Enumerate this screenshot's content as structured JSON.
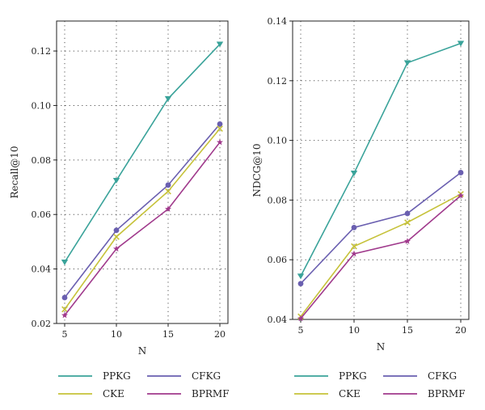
{
  "colors": {
    "PPKG": "#3aa39a",
    "CFKG": "#6a5fb0",
    "CKE": "#c6c23a",
    "BPRMF": "#a03a8c"
  },
  "legend": {
    "entries": [
      "PPKG",
      "CFKG",
      "CKE",
      "BPRMF"
    ]
  },
  "chart_data": [
    {
      "type": "line",
      "xlabel": "N",
      "ylabel": "Recall@10",
      "x": [
        5,
        10,
        15,
        20
      ],
      "xticks": [
        "5",
        "10",
        "15",
        "20"
      ],
      "yticks": [
        "0.02",
        "0.04",
        "0.06",
        "0.08",
        "0.10",
        "0.12"
      ],
      "ylim": [
        0.02,
        0.131
      ],
      "grid": true,
      "series": [
        {
          "name": "PPKG",
          "marker": "triangle-down",
          "values": [
            0.0425,
            0.0725,
            0.1025,
            0.1225
          ]
        },
        {
          "name": "CFKG",
          "marker": "circle",
          "values": [
            0.0295,
            0.0542,
            0.0708,
            0.0932
          ]
        },
        {
          "name": "CKE",
          "marker": "x",
          "values": [
            0.0252,
            0.0518,
            0.0685,
            0.0915
          ]
        },
        {
          "name": "BPRMF",
          "marker": "star",
          "values": [
            0.023,
            0.0474,
            0.062,
            0.0865
          ]
        }
      ]
    },
    {
      "type": "line",
      "xlabel": "N",
      "ylabel": "NDCG@10",
      "x": [
        5,
        10,
        15,
        20
      ],
      "xticks": [
        "5",
        "10",
        "15",
        "20"
      ],
      "yticks": [
        "0.04",
        "0.06",
        "0.08",
        "0.10",
        "0.12",
        "0.14"
      ],
      "ylim": [
        0.04,
        0.14
      ],
      "grid": true,
      "series": [
        {
          "name": "PPKG",
          "marker": "triangle-down",
          "values": [
            0.0545,
            0.089,
            0.126,
            0.1325
          ]
        },
        {
          "name": "CFKG",
          "marker": "circle",
          "values": [
            0.052,
            0.0708,
            0.0755,
            0.0892
          ]
        },
        {
          "name": "CKE",
          "marker": "x",
          "values": [
            0.041,
            0.0645,
            0.0725,
            0.082
          ]
        },
        {
          "name": "BPRMF",
          "marker": "star",
          "values": [
            0.0403,
            0.062,
            0.0662,
            0.0815
          ]
        }
      ]
    }
  ]
}
